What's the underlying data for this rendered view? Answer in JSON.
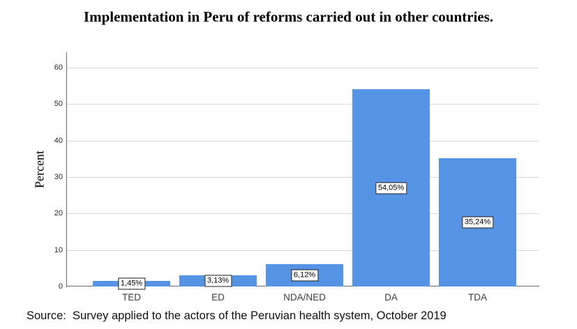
{
  "title": "Implementation in Peru of reforms carried out in other countries.",
  "source_note": "Source:  Survey applied to the actors of the Peruvian health system, October 2019",
  "chart_data": {
    "type": "bar",
    "title": "Implementation in Peru of reforms carried out in other countries.",
    "categories": [
      "TED",
      "ED",
      "NDA/NED",
      "DA",
      "TDA"
    ],
    "values": [
      1.45,
      3.13,
      6.12,
      54.05,
      35.24
    ],
    "value_labels": [
      "1,45%",
      "3,13%",
      "6,12%",
      "54,05%",
      "35,24%"
    ],
    "ylabel": "Percent",
    "xlabel": "",
    "yticks": [
      0,
      10,
      20,
      30,
      40,
      50,
      60
    ],
    "ylim": [
      0,
      64.2
    ],
    "grid": "horizontal",
    "legend": "none",
    "colors": {
      "bar_fill": "#5593E4",
      "gridline": "#D6D6D6",
      "axis": "#6A6A6A",
      "value_box_bg": "#FFFFFF",
      "value_box_border": "#1A1A1A",
      "tick_text": "#262626",
      "category_text": "#3D3D3D",
      "background": "#FFFFFF"
    }
  }
}
